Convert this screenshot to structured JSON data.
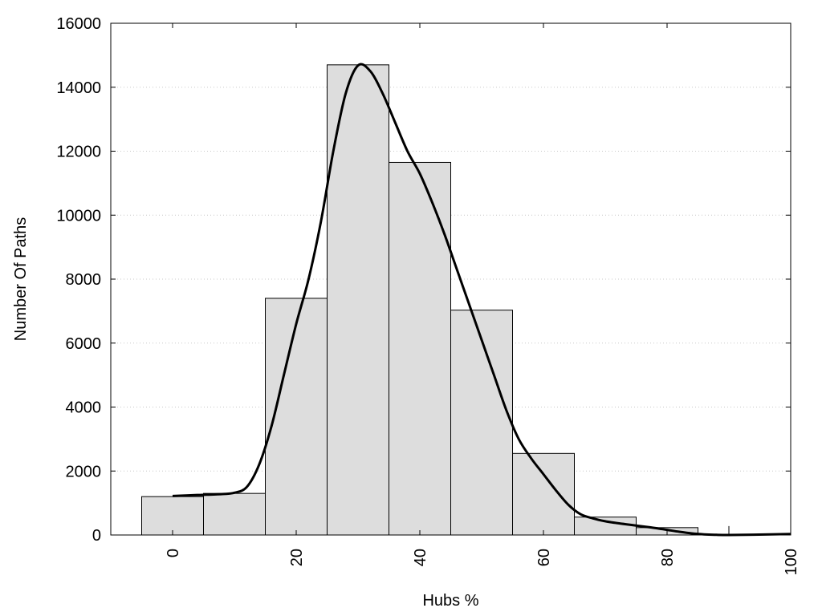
{
  "chart_data": {
    "type": "bar",
    "title": "",
    "xlabel": "Hubs %",
    "ylabel": "Number Of Paths",
    "xlim": [
      -10,
      100
    ],
    "ylim": [
      0,
      16000
    ],
    "x_ticks": [
      0,
      20,
      40,
      60,
      80,
      100
    ],
    "y_ticks": [
      0,
      2000,
      4000,
      6000,
      8000,
      10000,
      12000,
      14000,
      16000
    ],
    "grid": "horizontal dotted",
    "bin_width": 10,
    "bar_color": "#dddddd",
    "bars": [
      {
        "x": 0,
        "value": 1200
      },
      {
        "x": 10,
        "value": 1300
      },
      {
        "x": 20,
        "value": 7400
      },
      {
        "x": 30,
        "value": 14700
      },
      {
        "x": 40,
        "value": 11650
      },
      {
        "x": 50,
        "value": 7030
      },
      {
        "x": 60,
        "value": 2550
      },
      {
        "x": 70,
        "value": 560
      },
      {
        "x": 80,
        "value": 230
      },
      {
        "x": 90,
        "value": 0
      },
      {
        "x": 100,
        "value": 0
      }
    ],
    "density_curve": [
      [
        0,
        1220
      ],
      [
        4,
        1250
      ],
      [
        8,
        1280
      ],
      [
        10,
        1320
      ],
      [
        12,
        1500
      ],
      [
        14,
        2200
      ],
      [
        16,
        3400
      ],
      [
        18,
        5000
      ],
      [
        20,
        6600
      ],
      [
        22,
        8000
      ],
      [
        24,
        9800
      ],
      [
        26,
        12000
      ],
      [
        28,
        13800
      ],
      [
        30,
        14680
      ],
      [
        32,
        14500
      ],
      [
        34,
        13800
      ],
      [
        36,
        12900
      ],
      [
        38,
        12000
      ],
      [
        40,
        11300
      ],
      [
        42,
        10400
      ],
      [
        44,
        9400
      ],
      [
        46,
        8300
      ],
      [
        48,
        7200
      ],
      [
        50,
        6100
      ],
      [
        52,
        5000
      ],
      [
        54,
        3900
      ],
      [
        56,
        3000
      ],
      [
        58,
        2400
      ],
      [
        60,
        1900
      ],
      [
        62,
        1400
      ],
      [
        64,
        950
      ],
      [
        66,
        650
      ],
      [
        68,
        520
      ],
      [
        70,
        430
      ],
      [
        72,
        370
      ],
      [
        74,
        320
      ],
      [
        76,
        270
      ],
      [
        78,
        220
      ],
      [
        80,
        160
      ],
      [
        82,
        100
      ],
      [
        84,
        50
      ],
      [
        86,
        20
      ],
      [
        88,
        5
      ],
      [
        90,
        0
      ],
      [
        94,
        10
      ],
      [
        100,
        30
      ]
    ],
    "stray_mark": {
      "x": 90,
      "value": 280
    }
  }
}
